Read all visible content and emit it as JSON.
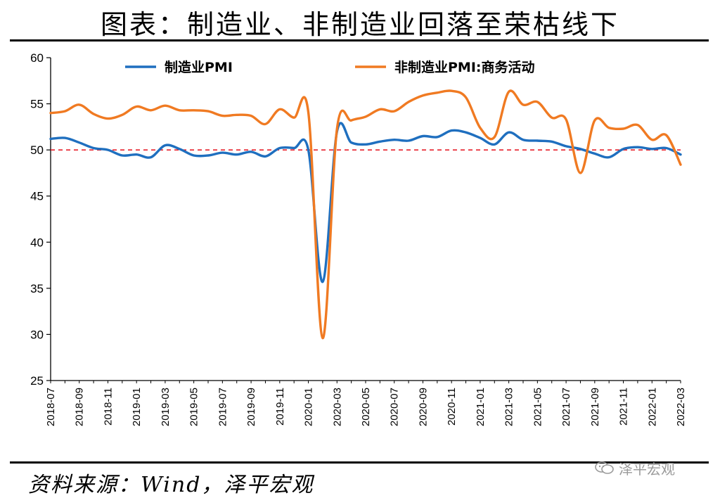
{
  "title": "图表：制造业、非制造业回落至荣枯线下",
  "source": "资料来源：Wind，泽平宏观",
  "watermark": {
    "text": "泽平宏观",
    "icon": "wechat-icon"
  },
  "chart_data": {
    "type": "line",
    "x": [
      "2018-07",
      "2018-08",
      "2018-09",
      "2018-10",
      "2018-11",
      "2018-12",
      "2019-01",
      "2019-02",
      "2019-03",
      "2019-04",
      "2019-05",
      "2019-06",
      "2019-07",
      "2019-08",
      "2019-09",
      "2019-10",
      "2019-11",
      "2019-12",
      "2020-01",
      "2020-02",
      "2020-03",
      "2020-04",
      "2020-05",
      "2020-06",
      "2020-07",
      "2020-08",
      "2020-09",
      "2020-10",
      "2020-11",
      "2020-12",
      "2021-01",
      "2021-02",
      "2021-03",
      "2021-04",
      "2021-05",
      "2021-06",
      "2021-07",
      "2021-08",
      "2021-09",
      "2021-10",
      "2021-11",
      "2021-12",
      "2022-01",
      "2022-02",
      "2022-03"
    ],
    "x_tick_labels": [
      "2018-07",
      "2018-09",
      "2018-11",
      "2019-01",
      "2019-03",
      "2019-05",
      "2019-07",
      "2019-09",
      "2019-11",
      "2020-01",
      "2020-03",
      "2020-05",
      "2020-07",
      "2020-09",
      "2020-11",
      "2021-01",
      "2021-03",
      "2021-05",
      "2021-07",
      "2021-09",
      "2021-11",
      "2022-01",
      "2022-03"
    ],
    "series": [
      {
        "name": "制造业PMI",
        "color": "#1f6fbf",
        "values": [
          51.2,
          51.3,
          50.8,
          50.2,
          50.0,
          49.4,
          49.5,
          49.2,
          50.5,
          50.1,
          49.4,
          49.4,
          49.7,
          49.5,
          49.8,
          49.3,
          50.2,
          50.2,
          50.0,
          35.7,
          52.0,
          50.8,
          50.6,
          50.9,
          51.1,
          51.0,
          51.5,
          51.4,
          52.1,
          51.9,
          51.3,
          50.6,
          51.9,
          51.1,
          51.0,
          50.9,
          50.4,
          50.1,
          49.6,
          49.2,
          50.1,
          50.3,
          50.1,
          50.2,
          49.5
        ]
      },
      {
        "name": "非制造业PMI:商务活动",
        "color": "#f07a22",
        "values": [
          54.0,
          54.2,
          54.9,
          53.9,
          53.4,
          53.8,
          54.7,
          54.3,
          54.8,
          54.3,
          54.3,
          54.2,
          53.7,
          53.8,
          53.7,
          52.8,
          54.4,
          53.5,
          54.1,
          29.6,
          52.3,
          53.2,
          53.6,
          54.4,
          54.2,
          55.2,
          55.9,
          56.2,
          56.4,
          55.7,
          52.4,
          51.4,
          56.3,
          54.9,
          55.2,
          53.5,
          53.3,
          47.5,
          53.2,
          52.4,
          52.3,
          52.7,
          51.1,
          51.6,
          48.4
        ]
      }
    ],
    "reference_line": {
      "y": 50,
      "color": "#e8212b",
      "style": "dashed"
    },
    "ylim": [
      25,
      60
    ],
    "yticks": [
      25,
      30,
      35,
      40,
      45,
      50,
      55,
      60
    ],
    "legend_position": "top",
    "grid": false
  }
}
